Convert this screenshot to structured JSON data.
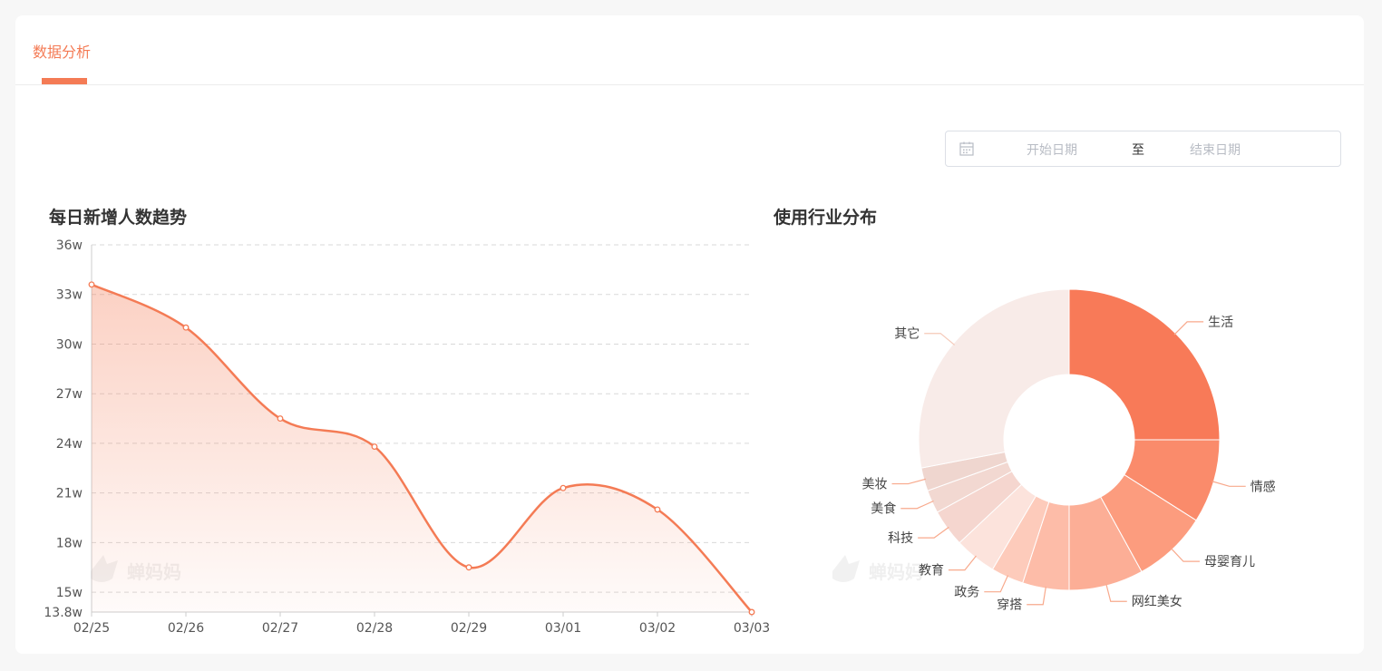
{
  "tabs": {
    "active": "数据分析"
  },
  "date_range": {
    "start_placeholder": "开始日期",
    "separator": "至",
    "end_placeholder": "结束日期"
  },
  "watermark": "蝉妈妈",
  "colors": {
    "accent": "#f47b55"
  },
  "chart_data": [
    {
      "type": "area",
      "title": "每日新增人数趋势",
      "x": [
        "02/25",
        "02/26",
        "02/27",
        "02/28",
        "02/29",
        "03/01",
        "03/02",
        "03/03"
      ],
      "values": [
        33.6,
        31.0,
        25.5,
        23.8,
        16.5,
        21.3,
        20.0,
        13.8
      ],
      "ylim": [
        13.8,
        36
      ],
      "yticks": [
        "13.8w",
        "15w",
        "18w",
        "21w",
        "24w",
        "27w",
        "30w",
        "33w",
        "36w"
      ],
      "grid": true,
      "series_color": "#f47b55"
    },
    {
      "type": "pie",
      "title": "使用行业分布",
      "labels": [
        "生活",
        "情感",
        "母婴育儿",
        "网红美女",
        "穿搭",
        "政务",
        "教育",
        "科技",
        "美食",
        "美妆",
        "其它"
      ],
      "values": [
        25,
        9,
        8,
        8,
        5,
        3.5,
        4.5,
        4,
        2.5,
        2.5,
        28
      ],
      "colors": [
        "#f87a58",
        "#fa8b6b",
        "#fc9c7e",
        "#fcae96",
        "#fdbca8",
        "#fdcbbb",
        "#fce3dc",
        "#f5d6cf",
        "#f2d8d1",
        "#efd6cf",
        "#f8ebe8"
      ]
    }
  ]
}
